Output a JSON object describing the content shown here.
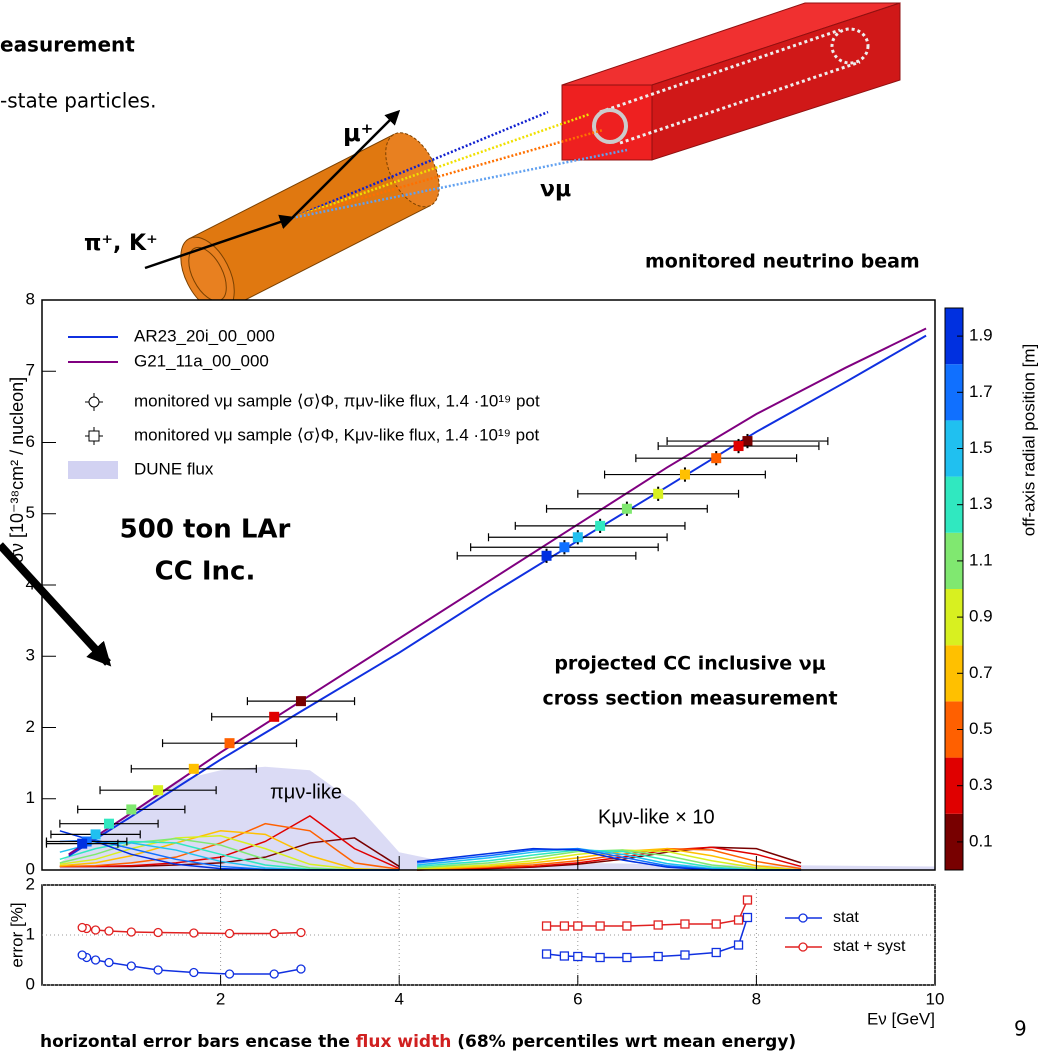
{
  "slide": {
    "title_fragment": "easurement",
    "subtitle_fragment": "-state particles.",
    "diagram": {
      "muon": "μ⁺",
      "meson": "π⁺, K⁺",
      "neutrino": "νμ",
      "caption": "monitored neutrino beam"
    },
    "target_label": [
      "500 ton LAr",
      "CC Inc."
    ],
    "note": [
      "projected CC inclusive νμ",
      "cross section measurement"
    ],
    "footer": {
      "before": "horizontal error bars encase the ",
      "highlight": "flux width",
      "after": " (68% percentiles wrt mean energy)"
    },
    "page_number": "9"
  },
  "chart_data": [
    {
      "type": "line",
      "ylabel": "σν [10⁻³⁸cm² / nucleon]",
      "xlim": [
        0,
        10
      ],
      "xticks": [
        2,
        4,
        6,
        8
      ],
      "ylim": [
        0,
        8
      ],
      "yticks": [
        0,
        1,
        2,
        3,
        4,
        5,
        6,
        7,
        8
      ],
      "series": [
        {
          "name": "AR23_20i_00_000",
          "color": "#1030e0",
          "x": [
            0.3,
            1,
            2,
            3,
            4,
            5,
            6,
            7,
            8,
            9,
            9.9
          ],
          "values": [
            0.2,
            0.75,
            1.55,
            2.3,
            3.05,
            3.85,
            4.62,
            5.38,
            6.15,
            6.85,
            7.5
          ]
        },
        {
          "name": "G21_11a_00_000",
          "color": "#800080",
          "x": [
            0.3,
            1,
            2,
            3,
            4,
            5,
            6,
            7,
            8,
            9,
            9.9
          ],
          "values": [
            0.22,
            0.8,
            1.65,
            2.45,
            3.25,
            4.05,
            4.85,
            5.65,
            6.4,
            7.05,
            7.6
          ]
        }
      ],
      "points": [
        {
          "name": "monitored νμ sample ⟨σ⟩Φ, πμν-like flux, 1.4 ·10¹⁹ pot",
          "marker": "circle",
          "x": [
            2.9,
            2.6,
            2.1,
            1.7,
            1.3,
            1.0,
            0.75,
            0.6,
            0.5,
            0.45
          ],
          "values": [
            2.37,
            2.15,
            1.78,
            1.42,
            1.12,
            0.85,
            0.65,
            0.5,
            0.4,
            0.37
          ],
          "xerr": [
            0.6,
            0.7,
            0.75,
            0.7,
            0.65,
            0.6,
            0.55,
            0.5,
            0.45,
            0.4
          ],
          "yerr": [
            0.04,
            0.04,
            0.04,
            0.04,
            0.04,
            0.04,
            0.04,
            0.04,
            0.04,
            0.04
          ]
        },
        {
          "name": "monitored νμ sample ⟨σ⟩Φ, Kμν-like flux, 1.4 ·10¹⁹ pot",
          "marker": "square",
          "x": [
            7.9,
            7.8,
            7.55,
            7.2,
            6.9,
            6.55,
            6.25,
            6.0,
            5.85,
            5.65
          ],
          "values": [
            6.02,
            5.95,
            5.78,
            5.55,
            5.28,
            5.07,
            4.83,
            4.67,
            4.53,
            4.41
          ],
          "xerr": [
            0.9,
            0.9,
            0.9,
            0.9,
            0.9,
            0.9,
            0.95,
            1.0,
            1.05,
            1.0
          ],
          "yerr": [
            0.1,
            0.1,
            0.1,
            0.1,
            0.1,
            0.1,
            0.1,
            0.1,
            0.1,
            0.1
          ]
        }
      ],
      "area": {
        "name": "DUNE flux",
        "color": "#d2d2f2",
        "x": [
          0.2,
          0.5,
          1,
          1.5,
          2,
          2.5,
          3,
          3.5,
          4,
          4.5,
          5,
          6,
          7,
          8,
          9,
          10
        ],
        "values": [
          0.1,
          0.4,
          0.8,
          1.25,
          1.4,
          1.45,
          1.4,
          0.95,
          0.25,
          0.12,
          0.1,
          0.1,
          0.08,
          0.07,
          0.06,
          0.05
        ]
      },
      "flux_curves": [
        {
          "label": "πμν-like",
          "x": [
            0.2,
            0.6,
            1.0,
            1.5,
            2.0,
            2.5,
            3.0,
            3.5,
            4.0
          ],
          "curves": [
            [
              0.05,
              0.05,
              0.05,
              0.07,
              0.1,
              0.18,
              0.38,
              0.45,
              0.05
            ],
            [
              0.05,
              0.05,
              0.06,
              0.1,
              0.18,
              0.4,
              0.76,
              0.3,
              0.02
            ],
            [
              0.05,
              0.06,
              0.1,
              0.18,
              0.38,
              0.65,
              0.55,
              0.1,
              0.01
            ],
            [
              0.06,
              0.1,
              0.2,
              0.38,
              0.55,
              0.5,
              0.2,
              0.02,
              0
            ],
            [
              0.08,
              0.15,
              0.3,
              0.45,
              0.48,
              0.3,
              0.08,
              0.01,
              0
            ],
            [
              0.1,
              0.22,
              0.38,
              0.44,
              0.35,
              0.15,
              0.03,
              0,
              0
            ],
            [
              0.15,
              0.3,
              0.4,
              0.38,
              0.22,
              0.07,
              0.01,
              0,
              0
            ],
            [
              0.25,
              0.38,
              0.38,
              0.28,
              0.12,
              0.03,
              0,
              0,
              0
            ],
            [
              0.4,
              0.42,
              0.3,
              0.15,
              0.05,
              0.01,
              0,
              0,
              0
            ],
            [
              0.55,
              0.4,
              0.22,
              0.08,
              0.02,
              0,
              0,
              0,
              0
            ]
          ]
        },
        {
          "label": "Kμν-like × 10",
          "x": [
            4.2,
            5,
            5.5,
            6,
            6.5,
            7,
            7.5,
            8,
            8.5
          ],
          "curves": [
            [
              0,
              0.02,
              0.04,
              0.08,
              0.15,
              0.25,
              0.32,
              0.3,
              0.1
            ],
            [
              0,
              0.03,
              0.05,
              0.1,
              0.18,
              0.28,
              0.32,
              0.22,
              0.05
            ],
            [
              0,
              0.04,
              0.07,
              0.13,
              0.22,
              0.3,
              0.28,
              0.12,
              0.02
            ],
            [
              0.01,
              0.05,
              0.1,
              0.17,
              0.26,
              0.3,
              0.2,
              0.06,
              0
            ],
            [
              0.02,
              0.07,
              0.13,
              0.22,
              0.28,
              0.26,
              0.13,
              0.03,
              0
            ],
            [
              0.03,
              0.1,
              0.17,
              0.26,
              0.28,
              0.2,
              0.07,
              0.01,
              0
            ],
            [
              0.05,
              0.13,
              0.21,
              0.28,
              0.26,
              0.14,
              0.04,
              0,
              0
            ],
            [
              0.07,
              0.17,
              0.25,
              0.3,
              0.22,
              0.09,
              0.02,
              0,
              0
            ],
            [
              0.1,
              0.2,
              0.28,
              0.3,
              0.18,
              0.06,
              0.01,
              0,
              0
            ],
            [
              0.12,
              0.23,
              0.3,
              0.28,
              0.14,
              0.04,
              0,
              0,
              0
            ]
          ]
        }
      ],
      "colorbar": {
        "label": "off-axis radial position [m]",
        "lim": [
          0,
          2
        ],
        "ticks": [
          0.1,
          0.3,
          0.5,
          0.7,
          0.9,
          1.1,
          1.3,
          1.5,
          1.7,
          1.9
        ],
        "colors": [
          "#780000",
          "#e00000",
          "#ff6000",
          "#ffc000",
          "#d8f020",
          "#80e870",
          "#30e8c0",
          "#20c0f0",
          "#1070ff",
          "#0030e0"
        ]
      }
    },
    {
      "type": "line",
      "ylabel": "error [%]",
      "xlabel": "Eν [GeV]",
      "xlim": [
        0,
        10
      ],
      "xticks": [
        2,
        4,
        6,
        8,
        10
      ],
      "ylim": [
        0,
        2
      ],
      "yticks": [
        0,
        1,
        2
      ],
      "grid": true,
      "series": [
        {
          "name": "stat",
          "color": "#1030e0",
          "marker": "circle",
          "x": [
            2.9,
            2.6,
            2.1,
            1.7,
            1.3,
            1.0,
            0.75,
            0.6,
            0.5,
            0.45
          ],
          "values": [
            0.32,
            0.22,
            0.22,
            0.25,
            0.3,
            0.38,
            0.45,
            0.5,
            0.55,
            0.6
          ]
        },
        {
          "name": "stat + syst",
          "color": "#e02020",
          "marker": "circle",
          "x": [
            2.9,
            2.6,
            2.1,
            1.7,
            1.3,
            1.0,
            0.75,
            0.6,
            0.5,
            0.45
          ],
          "values": [
            1.05,
            1.03,
            1.03,
            1.04,
            1.05,
            1.06,
            1.08,
            1.1,
            1.13,
            1.15
          ]
        },
        {
          "color": "#1030e0",
          "marker": "square",
          "x": [
            7.9,
            7.8,
            7.55,
            7.2,
            6.9,
            6.55,
            6.25,
            6.0,
            5.85,
            5.65
          ],
          "values": [
            1.35,
            0.8,
            0.65,
            0.6,
            0.57,
            0.55,
            0.55,
            0.57,
            0.58,
            0.62
          ]
        },
        {
          "color": "#e02020",
          "marker": "square",
          "x": [
            7.9,
            7.8,
            7.55,
            7.2,
            6.9,
            6.55,
            6.25,
            6.0,
            5.85,
            5.65
          ],
          "values": [
            1.7,
            1.3,
            1.22,
            1.22,
            1.2,
            1.18,
            1.18,
            1.18,
            1.18,
            1.18
          ]
        }
      ]
    }
  ]
}
